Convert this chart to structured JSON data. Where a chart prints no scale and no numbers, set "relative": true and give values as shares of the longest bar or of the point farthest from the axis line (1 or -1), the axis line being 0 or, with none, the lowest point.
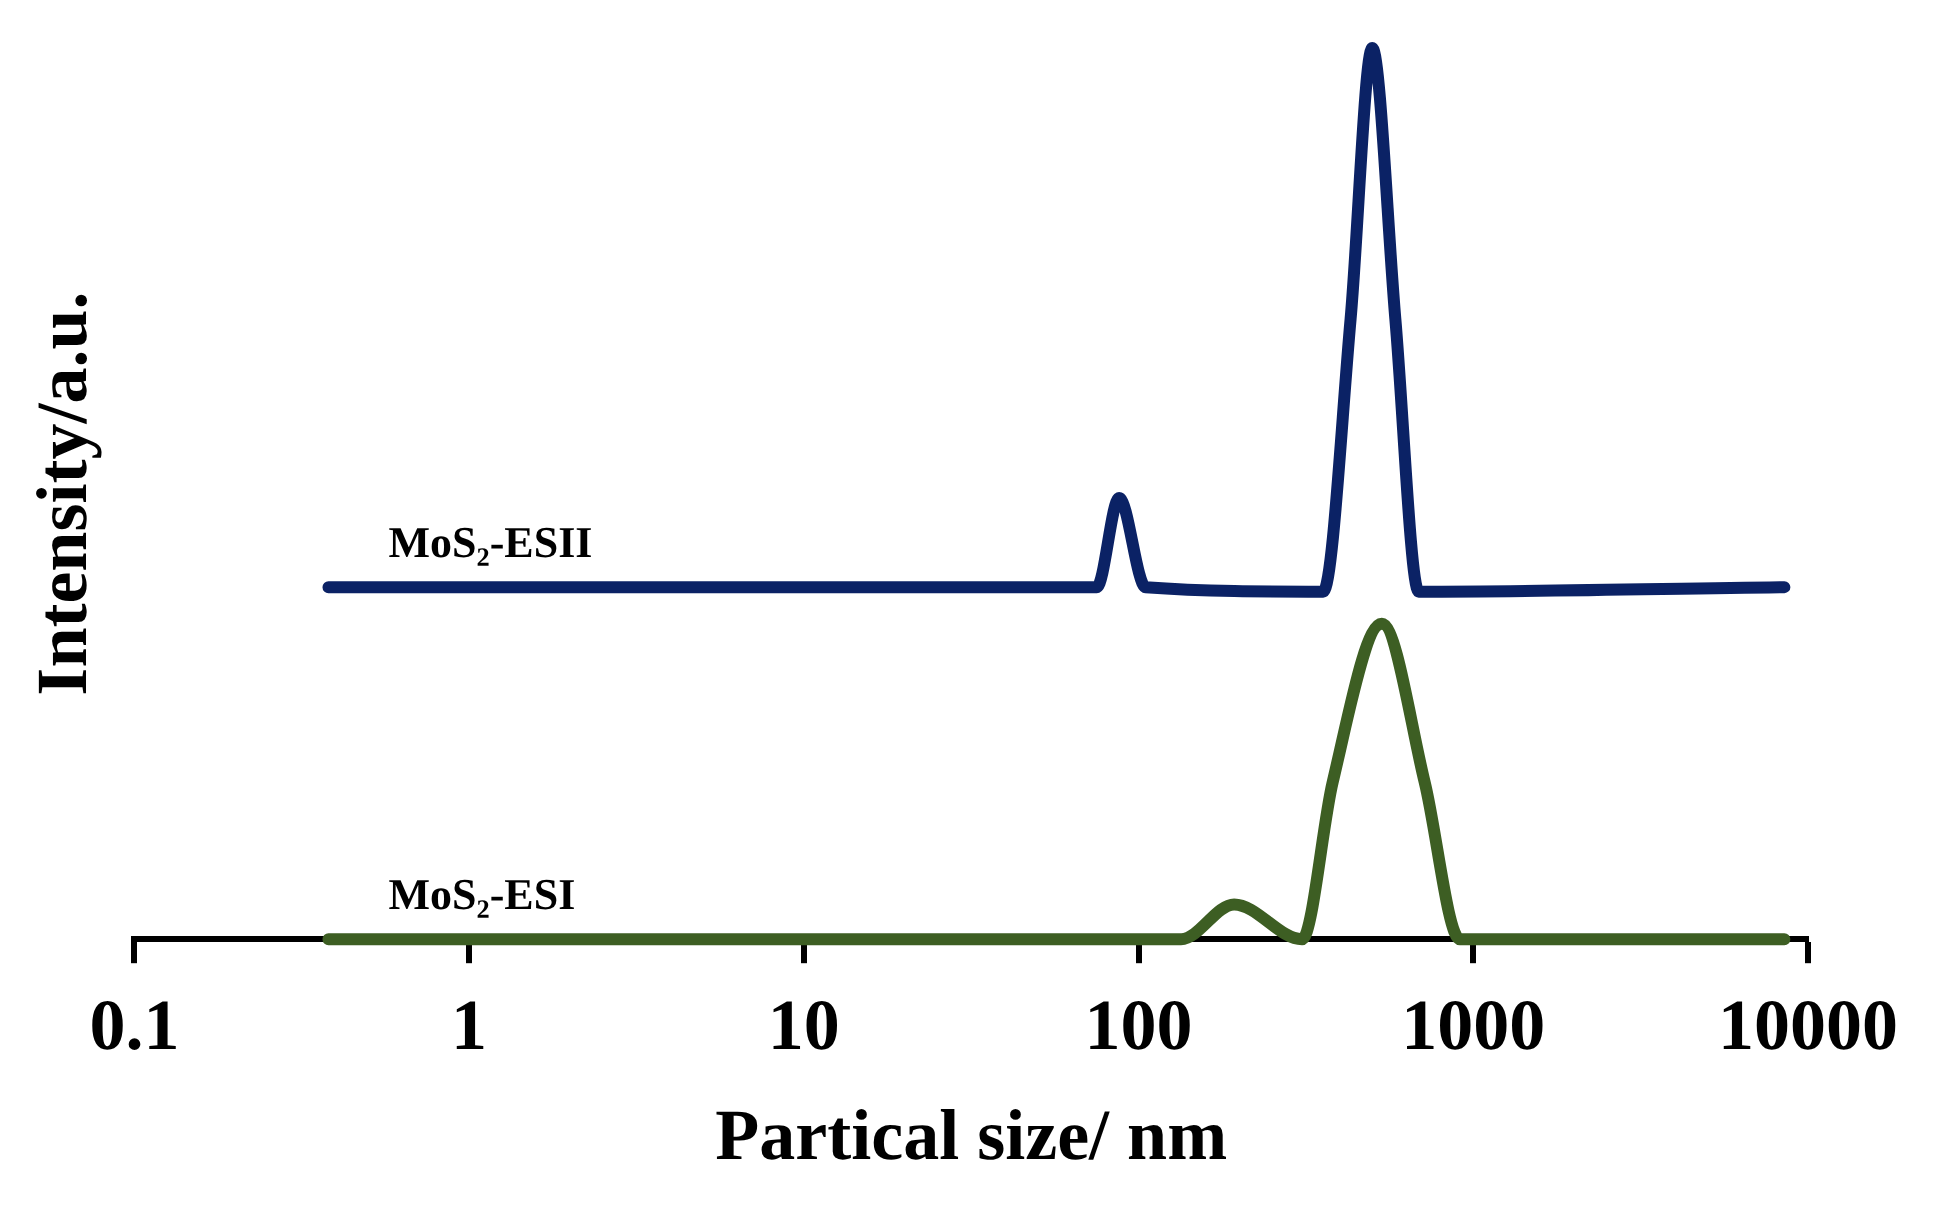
{
  "chart_data": {
    "type": "line",
    "xlabel": "Partical size/ nm",
    "ylabel": "Intensity/a.u.",
    "log": "x",
    "xlim": [
      0.1,
      10000
    ],
    "xticks": [
      0.1,
      1,
      10,
      100,
      1000,
      10000
    ],
    "relative": true,
    "grid": false,
    "legend": false,
    "marker": "none",
    "line_style": "solid",
    "series": [
      {
        "name": "MoS₂-ESII",
        "color": "#0b2265",
        "x": [
          0.38,
          75,
          87.5,
          105,
          356,
          430,
          499,
          585,
          687,
          8500
        ],
        "values": [
          0.395,
          0.395,
          0.495,
          0.395,
          0.39,
          0.696,
          1,
          0.696,
          0.39,
          0.395
        ]
      },
      {
        "name": "MoS₂-ESI",
        "color": "#3d5e23",
        "x": [
          0.38,
          134,
          193,
          308,
          380,
          533,
          716,
          912,
          8500
        ],
        "values": [
          0,
          0,
          0.039,
          0,
          0.176,
          0.354,
          0.176,
          0,
          0
        ]
      }
    ]
  }
}
